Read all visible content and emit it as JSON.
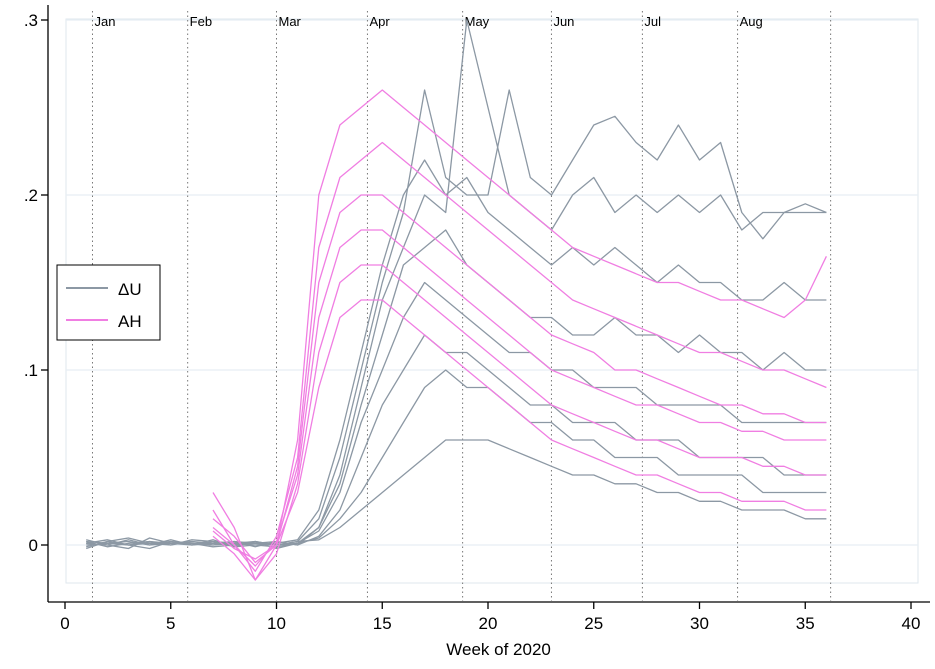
{
  "chart_data": {
    "type": "line",
    "title": "",
    "xlabel": "Week of 2020",
    "ylabel": "",
    "xlim": [
      -1,
      40
    ],
    "ylim": [
      -0.025,
      0.3
    ],
    "x_ticks": [
      0,
      5,
      10,
      15,
      20,
      25,
      30,
      35,
      40
    ],
    "x_tick_labels": [
      "0",
      "5",
      "10",
      "15",
      "20",
      "25",
      "30",
      "35",
      "40"
    ],
    "y_ticks": [
      0,
      0.1,
      0.2,
      0.3
    ],
    "y_tick_labels": [
      "0",
      ".1",
      ".2",
      ".3"
    ],
    "month_markers": [
      {
        "label": "Jan",
        "week": 1.3
      },
      {
        "label": "Feb",
        "week": 5.8
      },
      {
        "label": "Mar",
        "week": 10.0
      },
      {
        "label": "Apr",
        "week": 14.3
      },
      {
        "label": "May",
        "week": 18.8
      },
      {
        "label": "Jun",
        "week": 23.0
      },
      {
        "label": "Jul",
        "week": 27.3
      },
      {
        "label": "Aug",
        "week": 31.8
      },
      {
        "label": "",
        "week": 36.2
      }
    ],
    "legend": {
      "position": "left",
      "entries": [
        "ΔU",
        "AH"
      ]
    },
    "colors": {
      "du": "#8c98a4",
      "ah": "#f07ee2",
      "grid": "#e6eef4",
      "frame": "#dfe7ee"
    },
    "series": [
      {
        "name": "ΔU",
        "group": "du",
        "x": [
          1,
          2,
          3,
          4,
          5,
          6,
          7,
          8,
          9,
          10,
          11,
          12,
          13,
          14,
          15,
          16,
          17,
          18,
          19,
          20,
          21,
          22,
          23,
          24,
          25,
          26,
          27,
          28,
          29,
          30,
          31,
          32,
          33,
          34,
          35,
          36
        ],
        "values": [
          0.003,
          0.0,
          -0.002,
          0.004,
          0.001,
          0.0,
          0.003,
          -0.001,
          0.002,
          -0.002,
          0.001,
          0.01,
          0.04,
          0.09,
          0.14,
          0.17,
          0.2,
          0.19,
          0.3,
          0.25,
          0.2,
          0.19,
          0.18,
          0.2,
          0.21,
          0.19,
          0.2,
          0.19,
          0.2,
          0.19,
          0.2,
          0.18,
          0.19,
          0.19,
          0.19,
          0.19
        ]
      },
      {
        "name": "ΔU",
        "group": "du",
        "x": [
          1,
          2,
          3,
          4,
          5,
          6,
          7,
          8,
          9,
          10,
          11,
          12,
          13,
          14,
          15,
          16,
          17,
          18,
          19,
          20,
          21,
          22,
          23,
          24,
          25,
          26,
          27,
          28,
          29,
          30,
          31,
          32,
          33,
          34,
          35,
          36
        ],
        "values": [
          0.001,
          0.003,
          0.0,
          -0.002,
          0.002,
          0.001,
          -0.001,
          0.0,
          0.002,
          0.0,
          0.002,
          0.015,
          0.05,
          0.1,
          0.15,
          0.19,
          0.26,
          0.21,
          0.2,
          0.2,
          0.26,
          0.21,
          0.2,
          0.22,
          0.24,
          0.245,
          0.23,
          0.22,
          0.24,
          0.22,
          0.23,
          0.19,
          0.175,
          0.19,
          0.195,
          0.19
        ]
      },
      {
        "name": "ΔU",
        "group": "du",
        "x": [
          1,
          2,
          3,
          4,
          5,
          6,
          7,
          8,
          9,
          10,
          11,
          12,
          13,
          14,
          15,
          16,
          17,
          18,
          19,
          20,
          21,
          22,
          23,
          24,
          25,
          26,
          27,
          28,
          29,
          30,
          31,
          32,
          33,
          34,
          35,
          36
        ],
        "values": [
          -0.002,
          0.002,
          0.004,
          0.001,
          0.0,
          0.003,
          0.002,
          -0.001,
          0.0,
          0.001,
          0.003,
          0.02,
          0.06,
          0.11,
          0.16,
          0.2,
          0.22,
          0.2,
          0.21,
          0.19,
          0.18,
          0.17,
          0.16,
          0.17,
          0.16,
          0.17,
          0.16,
          0.15,
          0.16,
          0.15,
          0.15,
          0.14,
          0.14,
          0.15,
          0.14,
          0.14
        ]
      },
      {
        "name": "ΔU",
        "group": "du",
        "x": [
          1,
          2,
          3,
          4,
          5,
          6,
          7,
          8,
          9,
          10,
          11,
          12,
          13,
          14,
          15,
          16,
          17,
          18,
          19,
          20,
          21,
          22,
          23,
          24,
          25,
          26,
          27,
          28,
          29,
          30,
          31,
          32,
          33,
          34,
          35,
          36
        ],
        "values": [
          0.0,
          0.001,
          0.002,
          0.0,
          0.003,
          0.0,
          0.001,
          0.002,
          -0.001,
          0.002,
          0.0,
          0.01,
          0.035,
          0.08,
          0.12,
          0.16,
          0.17,
          0.18,
          0.16,
          0.15,
          0.14,
          0.13,
          0.13,
          0.12,
          0.12,
          0.13,
          0.12,
          0.12,
          0.11,
          0.12,
          0.11,
          0.11,
          0.1,
          0.11,
          0.1,
          0.1
        ]
      },
      {
        "name": "ΔU",
        "group": "du",
        "x": [
          1,
          2,
          3,
          4,
          5,
          6,
          7,
          8,
          9,
          10,
          11,
          12,
          13,
          14,
          15,
          16,
          17,
          18,
          19,
          20,
          21,
          22,
          23,
          24,
          25,
          26,
          27,
          28,
          29,
          30,
          31,
          32,
          33,
          34,
          35,
          36
        ],
        "values": [
          0.002,
          -0.001,
          0.001,
          0.002,
          0.0,
          0.002,
          0.0,
          0.001,
          0.002,
          0.0,
          0.001,
          0.008,
          0.03,
          0.07,
          0.1,
          0.13,
          0.15,
          0.14,
          0.13,
          0.12,
          0.11,
          0.11,
          0.1,
          0.1,
          0.09,
          0.09,
          0.09,
          0.08,
          0.08,
          0.08,
          0.08,
          0.07,
          0.07,
          0.07,
          0.07,
          0.07
        ]
      },
      {
        "name": "ΔU",
        "group": "du",
        "x": [
          1,
          2,
          3,
          4,
          5,
          6,
          7,
          8,
          9,
          10,
          11,
          12,
          13,
          14,
          15,
          16,
          17,
          18,
          19,
          20,
          21,
          22,
          23,
          24,
          25,
          26,
          27,
          28,
          29,
          30,
          31,
          32,
          33,
          34,
          35,
          36
        ],
        "values": [
          0.001,
          0.0,
          0.003,
          0.0,
          0.001,
          0.002,
          0.001,
          0.0,
          0.001,
          0.002,
          0.0,
          0.005,
          0.02,
          0.05,
          0.08,
          0.1,
          0.12,
          0.11,
          0.11,
          0.1,
          0.09,
          0.08,
          0.08,
          0.07,
          0.07,
          0.07,
          0.06,
          0.06,
          0.06,
          0.05,
          0.05,
          0.05,
          0.05,
          0.04,
          0.04,
          0.04
        ]
      },
      {
        "name": "ΔU",
        "group": "du",
        "x": [
          1,
          2,
          3,
          4,
          5,
          6,
          7,
          8,
          9,
          10,
          11,
          12,
          13,
          14,
          15,
          16,
          17,
          18,
          19,
          20,
          21,
          22,
          23,
          24,
          25,
          26,
          27,
          28,
          29,
          30,
          31,
          32,
          33,
          34,
          35,
          36
        ],
        "values": [
          -0.001,
          0.002,
          0.0,
          0.001,
          0.002,
          0.0,
          0.002,
          0.001,
          0.0,
          -0.001,
          0.001,
          0.004,
          0.015,
          0.03,
          0.05,
          0.07,
          0.09,
          0.1,
          0.09,
          0.09,
          0.08,
          0.07,
          0.07,
          0.06,
          0.06,
          0.05,
          0.05,
          0.05,
          0.04,
          0.04,
          0.04,
          0.04,
          0.03,
          0.03,
          0.03,
          0.03
        ]
      },
      {
        "name": "ΔU",
        "group": "du",
        "x": [
          1,
          2,
          3,
          4,
          5,
          6,
          7,
          8,
          9,
          10,
          11,
          12,
          13,
          14,
          15,
          16,
          17,
          18,
          19,
          20,
          21,
          22,
          23,
          24,
          25,
          26,
          27,
          28,
          29,
          30,
          31,
          32,
          33,
          34,
          35,
          36
        ],
        "values": [
          0.002,
          0.001,
          0.0,
          0.002,
          0.001,
          0.001,
          0.0,
          0.002,
          0.001,
          0.0,
          0.002,
          0.003,
          0.01,
          0.02,
          0.03,
          0.04,
          0.05,
          0.06,
          0.06,
          0.06,
          0.055,
          0.05,
          0.045,
          0.04,
          0.04,
          0.035,
          0.035,
          0.03,
          0.03,
          0.025,
          0.025,
          0.02,
          0.02,
          0.02,
          0.015,
          0.015
        ]
      },
      {
        "name": "AH",
        "group": "ah",
        "x": [
          7,
          8,
          9,
          10,
          11,
          12,
          13,
          14,
          15,
          16,
          17,
          18,
          19,
          20,
          21,
          22,
          23,
          24,
          25,
          26,
          27,
          28,
          29,
          30,
          31,
          32,
          33,
          34,
          35,
          36
        ],
        "values": [
          0.03,
          0.01,
          -0.02,
          0.0,
          0.06,
          0.2,
          0.24,
          0.25,
          0.26,
          0.25,
          0.24,
          0.23,
          0.22,
          0.21,
          0.2,
          0.19,
          0.18,
          0.17,
          0.165,
          0.16,
          0.155,
          0.15,
          0.15,
          0.145,
          0.14,
          0.14,
          0.135,
          0.13,
          0.14,
          0.165
        ]
      },
      {
        "name": "AH",
        "group": "ah",
        "x": [
          7,
          8,
          9,
          10,
          11,
          12,
          13,
          14,
          15,
          16,
          17,
          18,
          19,
          20,
          21,
          22,
          23,
          24,
          25,
          26,
          27,
          28,
          29,
          30,
          31,
          32,
          33,
          34,
          35,
          36
        ],
        "values": [
          0.02,
          0.0,
          -0.015,
          0.005,
          0.05,
          0.17,
          0.21,
          0.22,
          0.23,
          0.22,
          0.21,
          0.2,
          0.19,
          0.18,
          0.17,
          0.16,
          0.15,
          0.14,
          0.135,
          0.13,
          0.125,
          0.12,
          0.115,
          0.11,
          0.11,
          0.105,
          0.1,
          0.1,
          0.095,
          0.09
        ]
      },
      {
        "name": "AH",
        "group": "ah",
        "x": [
          7,
          8,
          9,
          10,
          11,
          12,
          13,
          14,
          15,
          16,
          17,
          18,
          19,
          20,
          21,
          22,
          23,
          24,
          25,
          26,
          27,
          28,
          29,
          30,
          31,
          32,
          33,
          34,
          35,
          36
        ],
        "values": [
          0.015,
          0.005,
          -0.01,
          0.0,
          0.045,
          0.15,
          0.19,
          0.2,
          0.2,
          0.19,
          0.18,
          0.17,
          0.16,
          0.15,
          0.14,
          0.13,
          0.12,
          0.115,
          0.11,
          0.1,
          0.1,
          0.095,
          0.09,
          0.085,
          0.08,
          0.08,
          0.075,
          0.075,
          0.07,
          0.07
        ]
      },
      {
        "name": "AH",
        "group": "ah",
        "x": [
          7,
          8,
          9,
          10,
          11,
          12,
          13,
          14,
          15,
          16,
          17,
          18,
          19,
          20,
          21,
          22,
          23,
          24,
          25,
          26,
          27,
          28,
          29,
          30,
          31,
          32,
          33,
          34,
          35,
          36
        ],
        "values": [
          0.01,
          0.0,
          -0.012,
          0.002,
          0.04,
          0.13,
          0.17,
          0.18,
          0.18,
          0.17,
          0.16,
          0.15,
          0.14,
          0.13,
          0.12,
          0.11,
          0.1,
          0.095,
          0.09,
          0.085,
          0.08,
          0.08,
          0.075,
          0.07,
          0.07,
          0.065,
          0.065,
          0.06,
          0.06,
          0.06
        ]
      },
      {
        "name": "AH",
        "group": "ah",
        "x": [
          7,
          8,
          9,
          10,
          11,
          12,
          13,
          14,
          15,
          16,
          17,
          18,
          19,
          20,
          21,
          22,
          23,
          24,
          25,
          26,
          27,
          28,
          29,
          30,
          31,
          32,
          33,
          34,
          35,
          36
        ],
        "values": [
          0.005,
          -0.005,
          -0.02,
          -0.005,
          0.035,
          0.11,
          0.15,
          0.16,
          0.16,
          0.15,
          0.14,
          0.13,
          0.12,
          0.11,
          0.1,
          0.09,
          0.08,
          0.075,
          0.07,
          0.065,
          0.06,
          0.06,
          0.055,
          0.05,
          0.05,
          0.05,
          0.045,
          0.045,
          0.04,
          0.04
        ]
      },
      {
        "name": "AH",
        "group": "ah",
        "x": [
          7,
          8,
          9,
          10,
          11,
          12,
          13,
          14,
          15,
          16,
          17,
          18,
          19,
          20,
          21,
          22,
          23,
          24,
          25,
          26,
          27,
          28,
          29,
          30,
          31,
          32,
          33,
          34,
          35,
          36
        ],
        "values": [
          0.008,
          -0.002,
          -0.008,
          0.0,
          0.03,
          0.09,
          0.13,
          0.14,
          0.14,
          0.13,
          0.12,
          0.11,
          0.1,
          0.09,
          0.08,
          0.07,
          0.06,
          0.055,
          0.05,
          0.045,
          0.04,
          0.04,
          0.035,
          0.03,
          0.03,
          0.025,
          0.025,
          0.025,
          0.02,
          0.02
        ]
      }
    ]
  },
  "chart_ui": {
    "legend": {
      "du_label": "ΔU",
      "ah_label": "AH"
    }
  }
}
